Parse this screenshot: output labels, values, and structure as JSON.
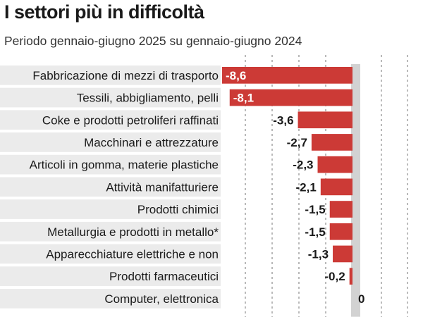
{
  "chart_data": {
    "type": "bar",
    "orientation": "horizontal",
    "title": "I settori più in difficoltà",
    "subtitle": "Periodo gennaio-giugno 2025 su gennaio-giugno 2024",
    "categories": [
      "Fabbricazione di mezzi di trasporto",
      "Tessili, abbigliamento, pelli",
      "Coke e prodotti petroliferi raffinati",
      "Macchinari e attrezzature",
      "Articoli in gomma, materie plastiche",
      "Attività manifatturiere",
      "Prodotti chimici",
      "Metallurgia e prodotti in metallo*",
      "Apparecchiature elettriche e non",
      "Prodotti farmaceutici",
      "Computer, elettronica"
    ],
    "values": [
      -8.6,
      -8.1,
      -3.6,
      -2.7,
      -2.3,
      -2.1,
      -1.5,
      -1.5,
      -1.3,
      -0.2,
      0
    ],
    "value_labels": [
      "-8,6",
      "-8,1",
      "-3,6",
      "-2,7",
      "-2,3",
      "-2,1",
      "-1,5",
      "-1,5",
      "-1,3",
      "-0,2",
      "0"
    ],
    "xlim": [
      -8.6,
      0
    ],
    "grid": true,
    "colors": {
      "bar": "#cc3a36",
      "row_band": "#ebebeb",
      "inside_label": "#ffffff",
      "outside_label": "#1a1a1a",
      "zero_shade": "#d2d2d2",
      "grid": "#8c8c8c"
    }
  }
}
